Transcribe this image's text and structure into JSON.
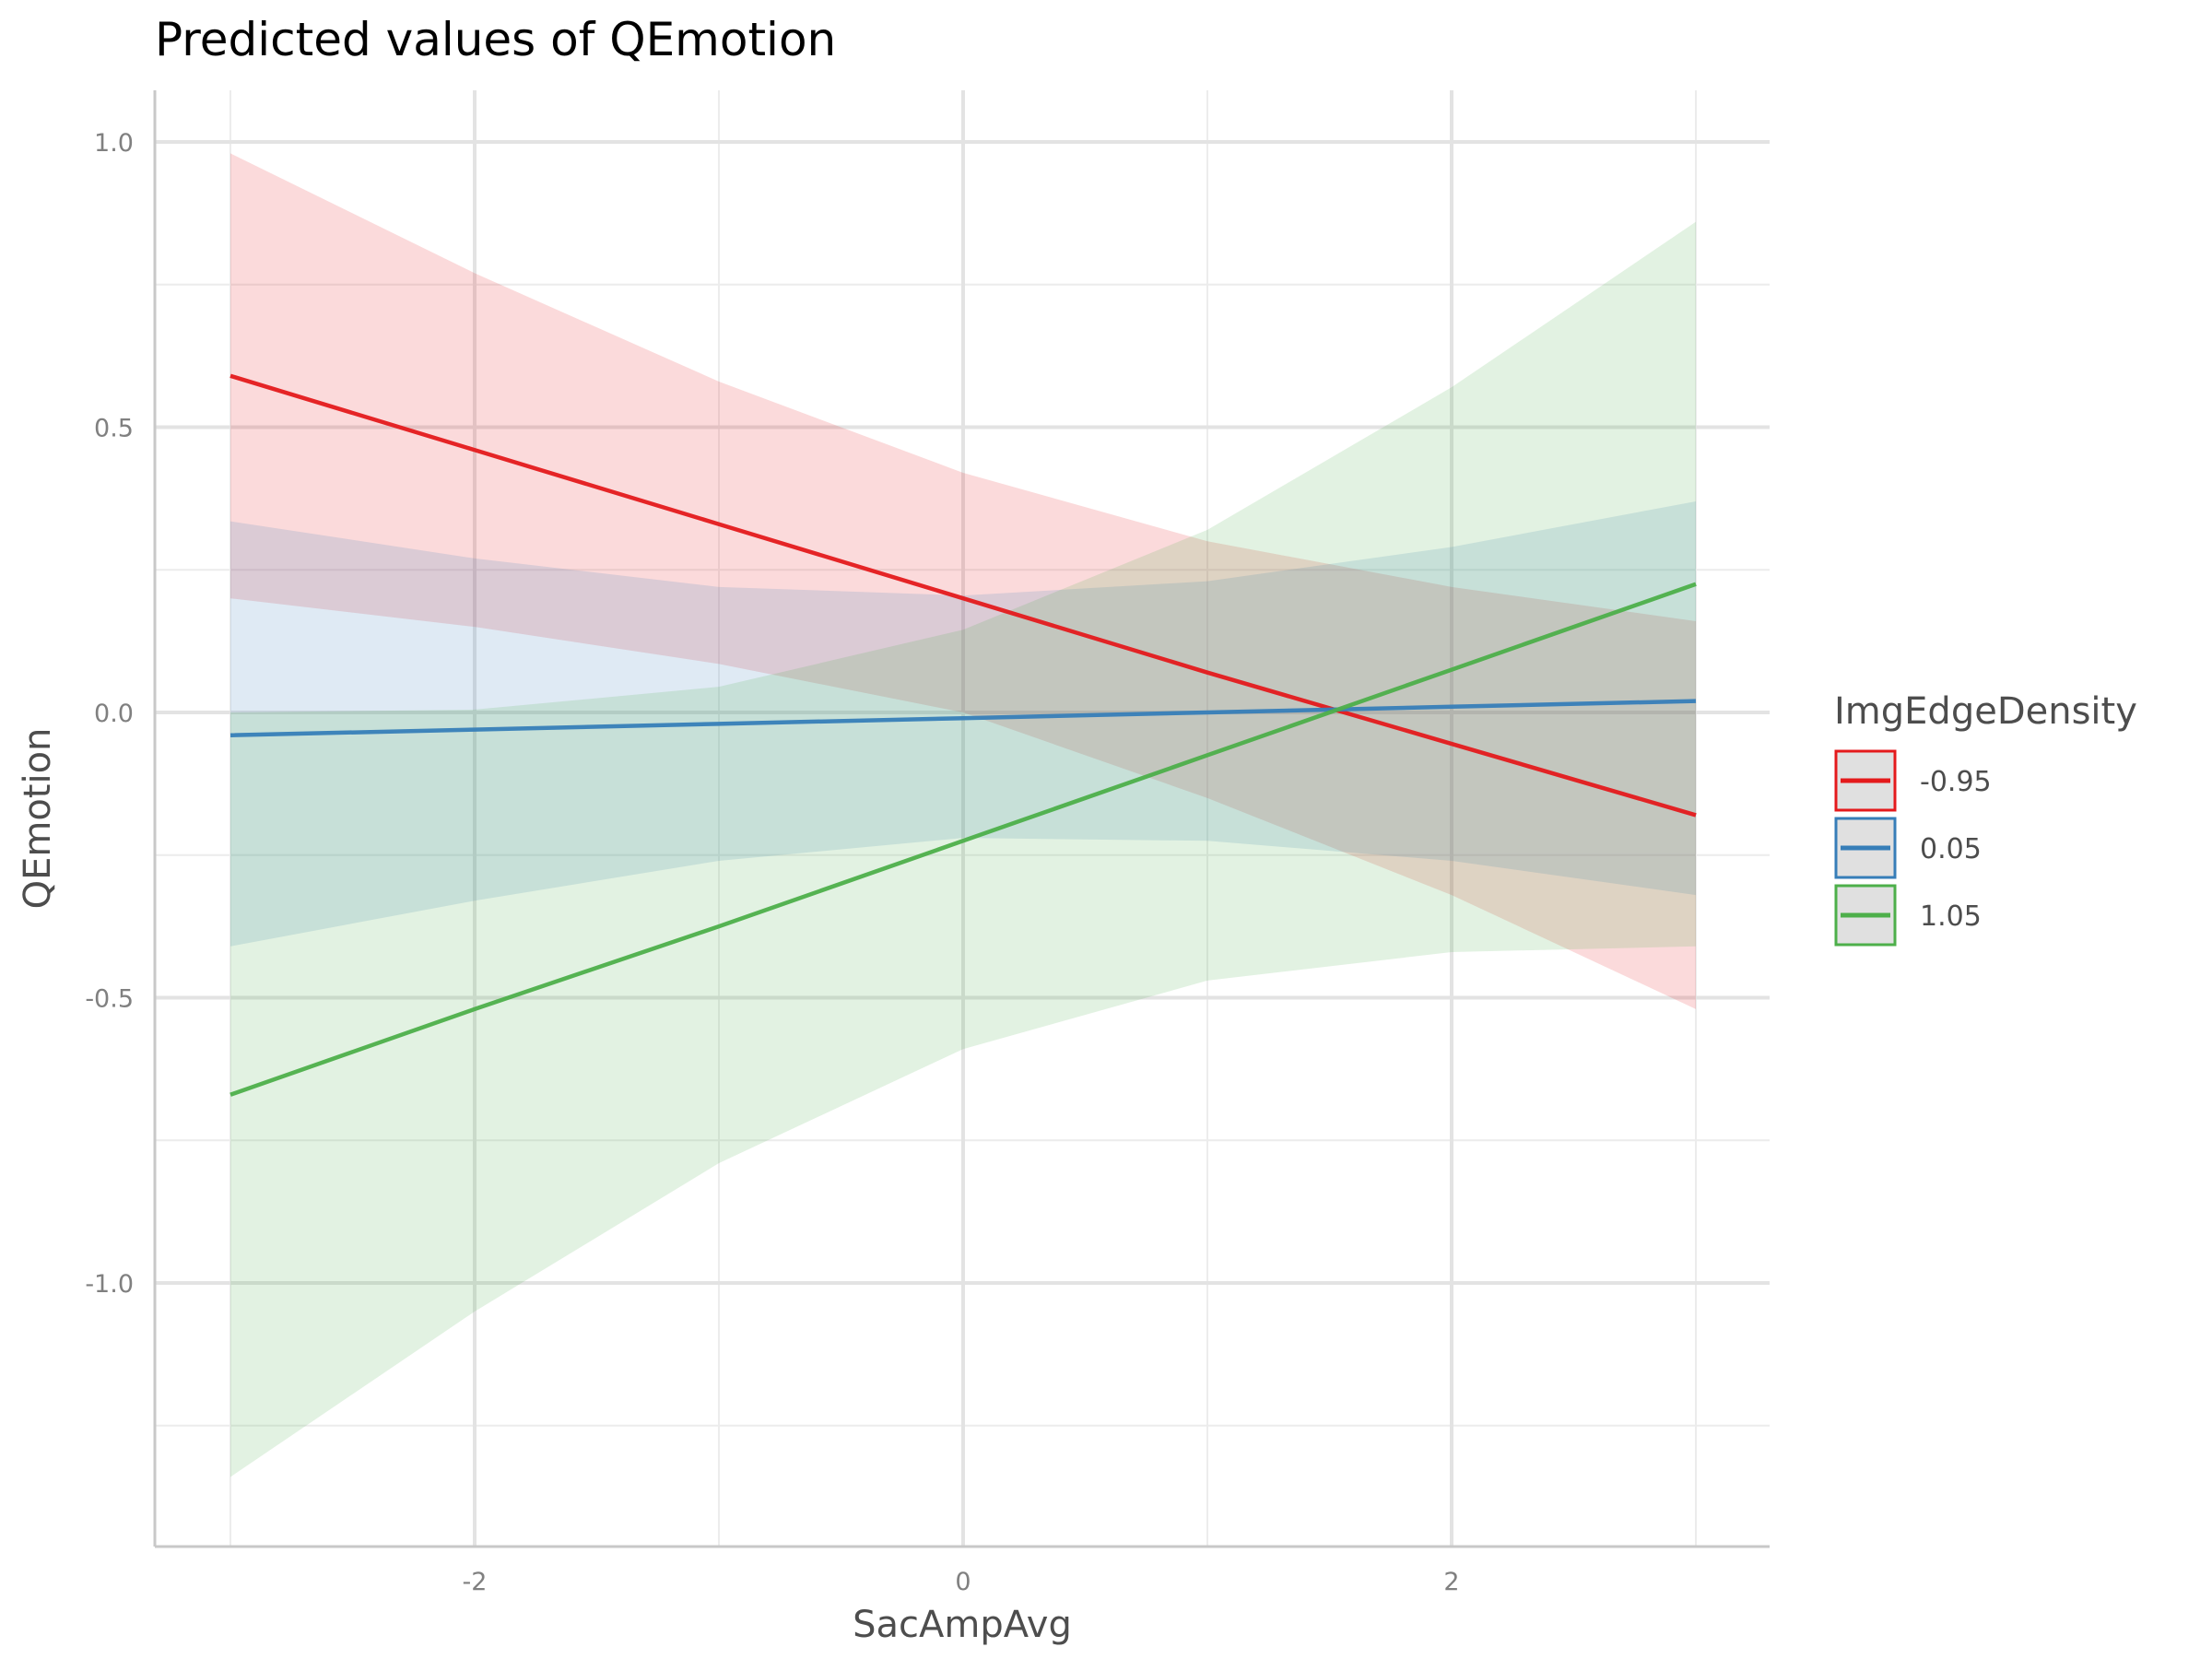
{
  "chart_data": {
    "type": "line",
    "title": "Predicted values of QEmotion",
    "xlabel": "SacAmpAvg",
    "ylabel": "QEmotion",
    "xlim": [
      -3.3,
      3.3
    ],
    "ylim": [
      -1.45,
      1.09
    ],
    "x_ticks": [
      -2,
      0,
      2
    ],
    "x_tick_labels": [
      "-2",
      "0",
      "2"
    ],
    "y_ticks": [
      -1.0,
      -0.5,
      0.0,
      0.5,
      1.0
    ],
    "y_tick_labels": [
      "-1.0",
      "-0.5",
      "0.0",
      "0.5",
      "1.0"
    ],
    "x_minor_ticks": [
      -3,
      -1,
      1,
      3
    ],
    "y_minor_ticks": [
      -1.25,
      -0.75,
      -0.25,
      0.25,
      0.75
    ],
    "grid": true,
    "legend": {
      "title": "ImgEdgeDensity",
      "position": "right"
    },
    "series": [
      {
        "name": "-0.95",
        "color": "#E41A1C",
        "x": [
          -3,
          -2,
          -1,
          0,
          1,
          2,
          3
        ],
        "y": [
          0.59,
          0.46,
          0.33,
          0.2,
          0.07,
          -0.055,
          -0.18
        ],
        "lower": [
          0.2,
          0.15,
          0.085,
          0.0,
          -0.15,
          -0.32,
          -0.52
        ],
        "upper": [
          0.98,
          0.77,
          0.58,
          0.42,
          0.3,
          0.22,
          0.16
        ]
      },
      {
        "name": "0.05",
        "color": "#377EB8",
        "x": [
          -3,
          -2,
          -1,
          0,
          1,
          2,
          3
        ],
        "y": [
          -0.04,
          -0.03,
          -0.02,
          -0.01,
          0.0,
          0.01,
          0.02
        ],
        "lower": [
          -0.41,
          -0.33,
          -0.26,
          -0.22,
          -0.225,
          -0.26,
          -0.32
        ],
        "upper": [
          0.335,
          0.27,
          0.22,
          0.205,
          0.23,
          0.29,
          0.37
        ]
      },
      {
        "name": "1.05",
        "color": "#4DAF4A",
        "x": [
          -3,
          -2,
          -1,
          0,
          1,
          2,
          3
        ],
        "y": [
          -0.67,
          -0.52,
          -0.375,
          -0.225,
          -0.075,
          0.075,
          0.225
        ],
        "lower": [
          -1.34,
          -1.05,
          -0.79,
          -0.59,
          -0.47,
          -0.42,
          -0.41
        ],
        "upper": [
          0.0,
          0.005,
          0.045,
          0.145,
          0.32,
          0.57,
          0.86
        ]
      }
    ]
  }
}
